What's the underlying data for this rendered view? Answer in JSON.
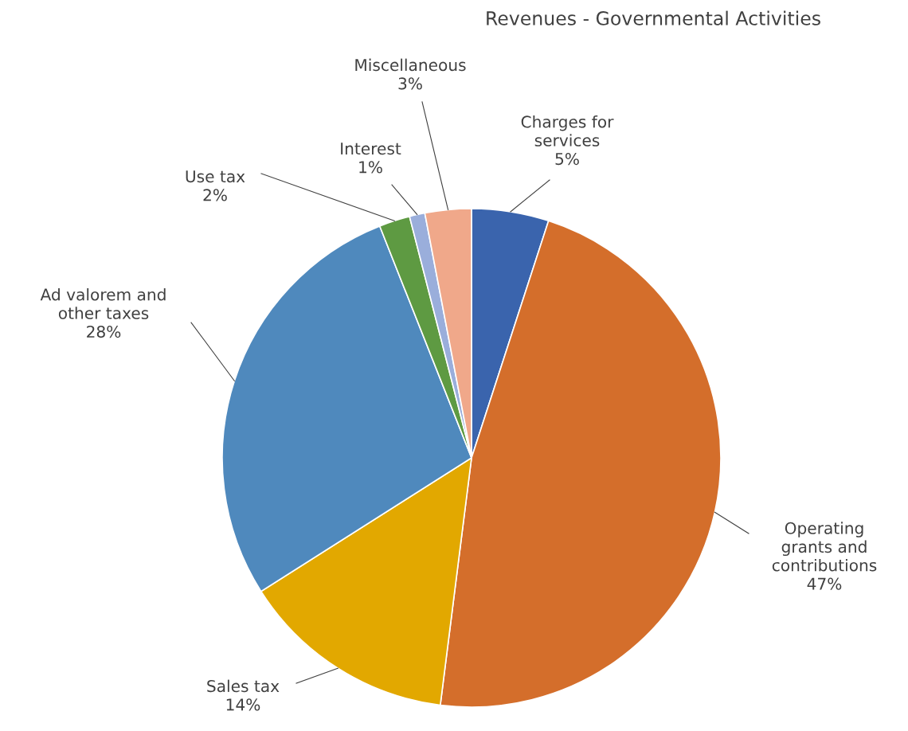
{
  "chart_data": {
    "type": "pie",
    "title": "Revenues - Governmental Activities",
    "categories": [
      "Charges for\nservices",
      "Operating\ngrants and\ncontributions",
      "Sales tax",
      "Ad valorem and\nother taxes",
      "Use tax",
      "Interest",
      "Miscellaneous"
    ],
    "values": [
      5,
      47,
      14,
      28,
      2,
      1,
      3
    ],
    "value_labels": [
      "5%",
      "47%",
      "14%",
      "28%",
      "2%",
      "1%",
      "3%"
    ],
    "colors": [
      "#3a64ad",
      "#d46e2b",
      "#e2a800",
      "#4f89bd",
      "#5e9a42",
      "#9aaedb",
      "#f0a88a"
    ],
    "legend": false
  }
}
